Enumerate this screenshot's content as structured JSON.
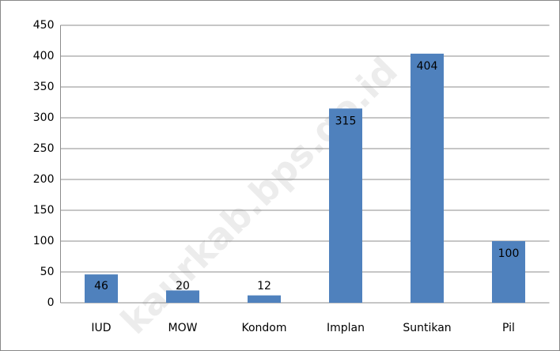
{
  "chart_data": {
    "type": "bar",
    "categories": [
      "IUD",
      "MOW",
      "Kondom",
      "Implan",
      "Suntikan",
      "Pil"
    ],
    "values": [
      46,
      20,
      12,
      315,
      404,
      100
    ],
    "color": "#4f81bd",
    "ylim": [
      0,
      450
    ],
    "yticks": [
      0,
      50,
      100,
      150,
      200,
      250,
      300,
      350,
      400,
      450
    ],
    "grid": true,
    "watermark": "kaurkab.bps.go.id"
  }
}
